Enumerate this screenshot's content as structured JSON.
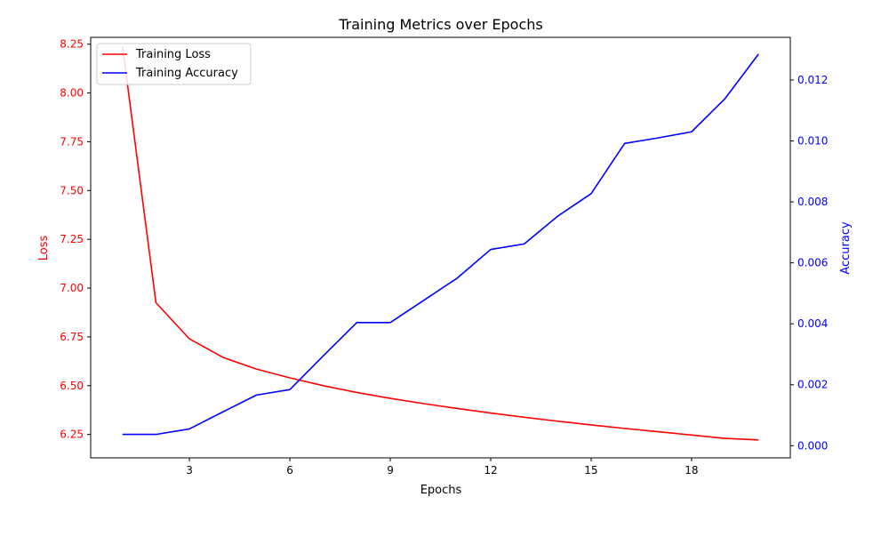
{
  "chart_data": {
    "type": "line",
    "title": "Training Metrics over Epochs",
    "xlabel": "Epochs",
    "ylabel_left": "Loss",
    "ylabel_right": "Accuracy",
    "xlim": [
      0.05,
      20.95
    ],
    "ylim_left": [
      6.13,
      8.285
    ],
    "ylim_right": [
      -0.0004,
      0.0134
    ],
    "x_ticks": [
      3,
      6,
      9,
      12,
      15,
      18
    ],
    "y_left_ticks": [
      "6.25",
      "6.50",
      "6.75",
      "7.00",
      "7.25",
      "7.50",
      "7.75",
      "8.00",
      "8.25"
    ],
    "y_right_ticks": [
      "0.000",
      "0.002",
      "0.004",
      "0.006",
      "0.008",
      "0.010",
      "0.012"
    ],
    "legend_position": "top-left",
    "grid": false,
    "x": [
      1,
      2,
      3,
      4,
      5,
      6,
      7,
      8,
      9,
      10,
      11,
      12,
      13,
      14,
      15,
      16,
      17,
      18,
      19,
      20
    ],
    "series": [
      {
        "name": "Training Loss",
        "axis": "left",
        "color": "#ff0000",
        "values": [
          8.24,
          6.925,
          6.74,
          6.645,
          6.585,
          6.54,
          6.5,
          6.465,
          6.435,
          6.408,
          6.383,
          6.36,
          6.338,
          6.318,
          6.299,
          6.281,
          6.264,
          6.247,
          6.23,
          6.222
        ]
      },
      {
        "name": "Training Accuracy",
        "axis": "right",
        "color": "#0000ff",
        "values": [
          0.00037,
          0.00037,
          0.00055,
          0.00111,
          0.00166,
          0.00184,
          0.00295,
          0.00404,
          0.00404,
          0.00477,
          0.0055,
          0.00644,
          0.00662,
          0.00753,
          0.00827,
          0.00992,
          0.0101,
          0.0103,
          0.01139,
          0.01285
        ]
      }
    ]
  }
}
